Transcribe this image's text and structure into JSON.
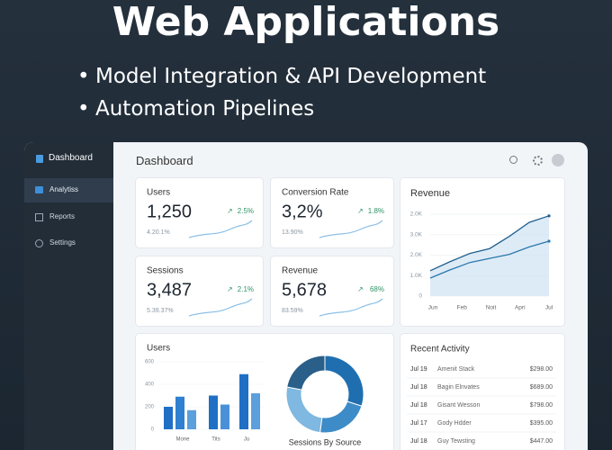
{
  "header": {
    "title": "Web Applications",
    "bullets": [
      "Model Integration & API Development",
      "Automation Pipelines"
    ]
  },
  "sidebar": {
    "brand": "Dashboard",
    "items": [
      "Analytiss",
      "Reports",
      "Settings"
    ]
  },
  "topbar": {
    "title": "Dashboard"
  },
  "kpis": [
    {
      "label": "Users",
      "value": "1,250",
      "change": "2.5%",
      "note": "4.20.1%"
    },
    {
      "label": "Conversion Rate",
      "value": "3,2%",
      "change": "1.8%",
      "note": "13.90%"
    },
    {
      "label": "Sessions",
      "value": "3,487",
      "change": "2.1%",
      "note": "5.39.37%"
    },
    {
      "label": "Revenue",
      "value": "5,678",
      "change": "68%",
      "note": "83.59%"
    }
  ],
  "revenue": {
    "title": "Revenue",
    "x_labels": [
      "Jun",
      "Feb",
      "Noit",
      "Apri",
      "Jul"
    ],
    "y_labels": [
      "2.0K",
      "3.0K",
      "2.0K",
      "1.0K",
      "0"
    ],
    "ylim": [
      0,
      100
    ],
    "series": [
      {
        "color": "#1f5f8e",
        "values": [
          31,
          42,
          52,
          58,
          73,
          90,
          98
        ]
      },
      {
        "color": "#2b78ab",
        "values": [
          22,
          32,
          41,
          46,
          51,
          60,
          67
        ]
      }
    ]
  },
  "users_chart": {
    "title": "Users",
    "ylim": [
      0,
      600
    ],
    "yticks": [
      0,
      200,
      400,
      600
    ],
    "categories": [
      null,
      "Mone",
      null,
      "Tits",
      null,
      "Ju",
      null
    ],
    "values": [
      200,
      290,
      170,
      300,
      220,
      490,
      320
    ],
    "colors": [
      "#1f6fc5",
      "#2f80d0",
      "#5b9fdc",
      "#1f6fc5",
      "#4a90d9",
      "#1f6fc5",
      "#5b9fdc"
    ]
  },
  "sources": {
    "title": "Sessions By Source",
    "values": [
      30,
      22,
      26,
      22
    ],
    "colors": [
      "#1f6fb0",
      "#3d8cc8",
      "#7fb8e0",
      "#2a5f8a"
    ]
  },
  "activity": {
    "title": "Recent Activity",
    "rows": [
      [
        "Jul 19",
        "Amenit Stack",
        "$298.00"
      ],
      [
        "Jul 18",
        "Bagin Elnvates",
        "$689.00"
      ],
      [
        "Jul 18",
        "Gisant Wesson",
        "$798.00"
      ],
      [
        "Jul 17",
        "Gody Hdder",
        "$395.00"
      ],
      [
        "Jul 18",
        "Guy Tewsting",
        "$447.00"
      ]
    ]
  }
}
